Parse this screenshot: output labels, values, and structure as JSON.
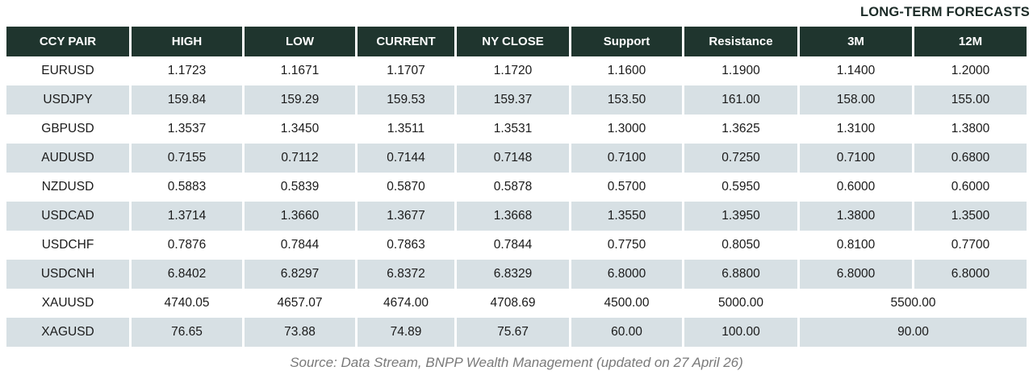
{
  "page": {
    "long_term_forecasts_label": "LONG-TERM FORECASTS",
    "source_note": "Source: Data Stream, BNPP Wealth Management (updated on 27 April 26)"
  },
  "chart_data": {
    "type": "table",
    "title": "FX rates and long-term forecasts",
    "columns": [
      "CCY PAIR",
      "HIGH",
      "LOW",
      "CURRENT",
      "NY CLOSE",
      "Support",
      "Resistance",
      "3M",
      "12M"
    ],
    "rows": [
      {
        "pair": "EURUSD",
        "high": "1.1723",
        "low": "1.1671",
        "current": "1.1707",
        "ny_close": "1.1720",
        "support": "1.1600",
        "resistance": "1.1900",
        "m3": "1.1400",
        "m12": "1.2000",
        "shaded": false
      },
      {
        "pair": "USDJPY",
        "high": "159.84",
        "low": "159.29",
        "current": "159.53",
        "ny_close": "159.37",
        "support": "153.50",
        "resistance": "161.00",
        "m3": "158.00",
        "m12": "155.00",
        "shaded": true
      },
      {
        "pair": "GBPUSD",
        "high": "1.3537",
        "low": "1.3450",
        "current": "1.3511",
        "ny_close": "1.3531",
        "support": "1.3000",
        "resistance": "1.3625",
        "m3": "1.3100",
        "m12": "1.3800",
        "shaded": false
      },
      {
        "pair": "AUDUSD",
        "high": "0.7155",
        "low": "0.7112",
        "current": "0.7144",
        "ny_close": "0.7148",
        "support": "0.7100",
        "resistance": "0.7250",
        "m3": "0.7100",
        "m12": "0.6800",
        "shaded": true
      },
      {
        "pair": "NZDUSD",
        "high": "0.5883",
        "low": "0.5839",
        "current": "0.5870",
        "ny_close": "0.5878",
        "support": "0.5700",
        "resistance": "0.5950",
        "m3": "0.6000",
        "m12": "0.6000",
        "shaded": false
      },
      {
        "pair": "USDCAD",
        "high": "1.3714",
        "low": "1.3660",
        "current": "1.3677",
        "ny_close": "1.3668",
        "support": "1.3550",
        "resistance": "1.3950",
        "m3": "1.3800",
        "m12": "1.3500",
        "shaded": true
      },
      {
        "pair": "USDCHF",
        "high": "0.7876",
        "low": "0.7844",
        "current": "0.7863",
        "ny_close": "0.7844",
        "support": "0.7750",
        "resistance": "0.8050",
        "m3": "0.8100",
        "m12": "0.7700",
        "shaded": false
      },
      {
        "pair": "USDCNH",
        "high": "6.8402",
        "low": "6.8297",
        "current": "6.8372",
        "ny_close": "6.8329",
        "support": "6.8000",
        "resistance": "6.8800",
        "m3": "6.8000",
        "m12": "6.8000",
        "shaded": true
      },
      {
        "pair": "XAUUSD",
        "high": "4740.05",
        "low": "4657.07",
        "current": "4674.00",
        "ny_close": "4708.69",
        "support": "4500.00",
        "resistance": "5000.00",
        "forecast_merged": "5500.00",
        "shaded": false
      },
      {
        "pair": "XAGUSD",
        "high": "76.65",
        "low": "73.88",
        "current": "74.89",
        "ny_close": "75.67",
        "support": "60.00",
        "resistance": "100.00",
        "forecast_merged": "90.00",
        "shaded": true
      }
    ]
  },
  "colors": {
    "header_bg": "#1f352e",
    "shaded_row_bg": "#d7e0e4",
    "body_text": "#1a1a1a",
    "long_term_label": "#1c2b27",
    "footer_text": "#7a7a7a"
  }
}
